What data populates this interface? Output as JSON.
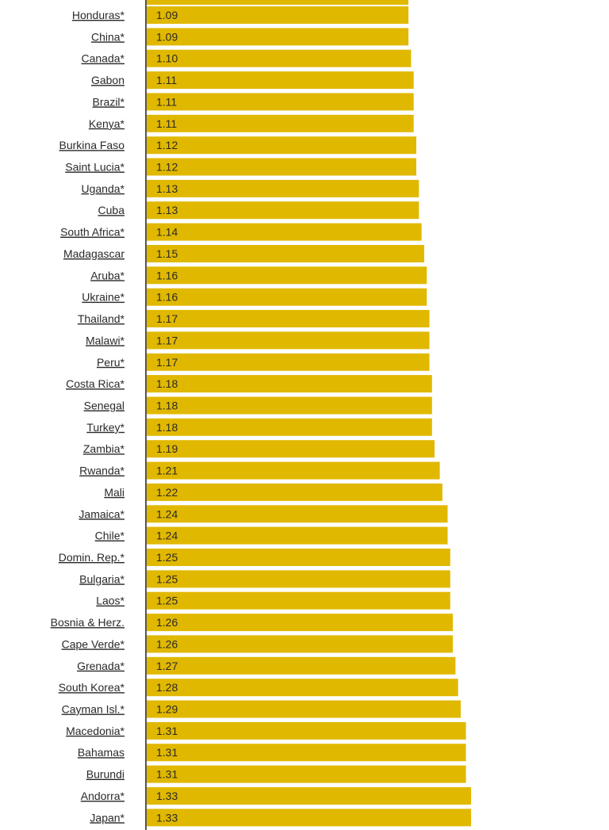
{
  "chart_data": {
    "type": "bar",
    "orientation": "horizontal",
    "bar_color": "#E1B800",
    "categories": [
      "Honduras*",
      "China*",
      "Canada*",
      "Gabon",
      "Brazil*",
      "Kenya*",
      "Burkina Faso",
      "Saint Lucia*",
      "Uganda*",
      "Cuba",
      "South Africa*",
      "Madagascar",
      "Aruba*",
      "Ukraine*",
      "Thailand*",
      "Malawi*",
      "Peru*",
      "Costa Rica*",
      "Senegal",
      "Turkey*",
      "Zambia*",
      "Rwanda*",
      "Mali",
      "Jamaica*",
      "Chile*",
      "Domin. Rep.*",
      "Bulgaria*",
      "Laos*",
      "Bosnia & Herz.",
      "Cape Verde*",
      "Grenada*",
      "South Korea*",
      "Cayman Isl.*",
      "Macedonia*",
      "Bahamas",
      "Burundi",
      "Andorra*",
      "Japan*"
    ],
    "values": [
      1.09,
      1.09,
      1.1,
      1.11,
      1.11,
      1.11,
      1.12,
      1.12,
      1.13,
      1.13,
      1.14,
      1.15,
      1.16,
      1.16,
      1.17,
      1.17,
      1.17,
      1.18,
      1.18,
      1.18,
      1.19,
      1.21,
      1.22,
      1.24,
      1.24,
      1.25,
      1.25,
      1.25,
      1.26,
      1.26,
      1.27,
      1.28,
      1.29,
      1.31,
      1.31,
      1.31,
      1.33,
      1.33
    ],
    "value_labels": [
      "1.09",
      "1.09",
      "1.10",
      "1.11",
      "1.11",
      "1.11",
      "1.12",
      "1.12",
      "1.13",
      "1.13",
      "1.14",
      "1.15",
      "1.16",
      "1.16",
      "1.17",
      "1.17",
      "1.17",
      "1.18",
      "1.18",
      "1.18",
      "1.19",
      "1.21",
      "1.22",
      "1.24",
      "1.24",
      "1.25",
      "1.25",
      "1.25",
      "1.26",
      "1.26",
      "1.27",
      "1.28",
      "1.29",
      "1.31",
      "1.31",
      "1.31",
      "1.33",
      "1.33"
    ],
    "title": "",
    "xlabel": "",
    "ylabel": "",
    "grid": false,
    "legend": "none"
  }
}
